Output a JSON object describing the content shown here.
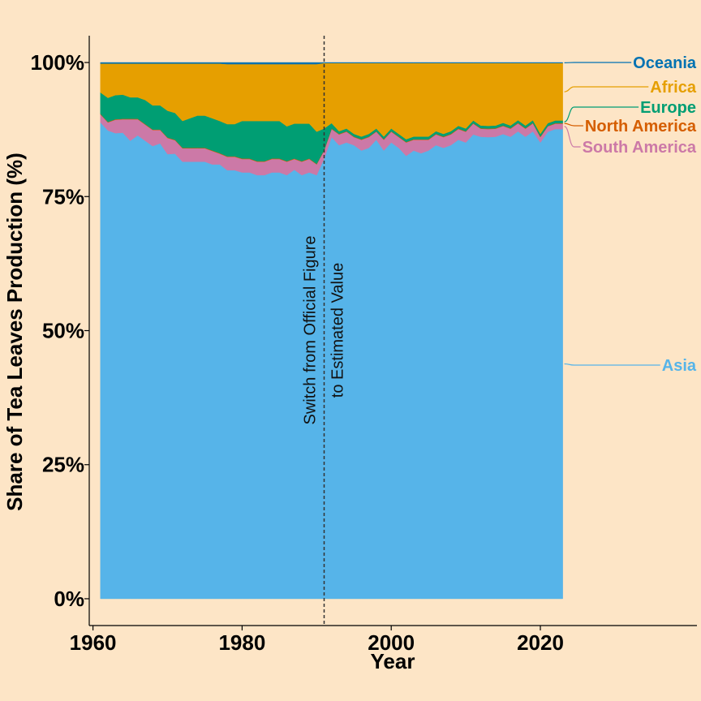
{
  "chart_data": {
    "type": "area",
    "stacked": true,
    "title": "",
    "xlabel": "Year",
    "ylabel": "Share of Tea Leaves Production (%)",
    "xlim": [
      1959.5,
      2041
    ],
    "ylim": [
      -5,
      105
    ],
    "x_ticks": [
      1960,
      1980,
      2000,
      2020
    ],
    "x_tick_labels": [
      "1960",
      "1980",
      "2000",
      "2020"
    ],
    "y_ticks": [
      0,
      25,
      50,
      75,
      100
    ],
    "y_tick_labels": [
      "0%",
      "25%",
      "50%",
      "75%",
      "100%"
    ],
    "grid": false,
    "legend": "direct labels at right",
    "x": [
      1961,
      1962,
      1963,
      1964,
      1965,
      1966,
      1967,
      1968,
      1969,
      1970,
      1971,
      1972,
      1973,
      1974,
      1975,
      1976,
      1977,
      1978,
      1979,
      1980,
      1981,
      1982,
      1983,
      1984,
      1985,
      1986,
      1987,
      1988,
      1989,
      1990,
      1991,
      1992,
      1993,
      1994,
      1995,
      1996,
      1997,
      1998,
      1999,
      2000,
      2001,
      2002,
      2003,
      2004,
      2005,
      2006,
      2007,
      2008,
      2009,
      2010,
      2011,
      2012,
      2013,
      2014,
      2015,
      2016,
      2017,
      2018,
      2019,
      2020,
      2021,
      2022,
      2023
    ],
    "series": [
      {
        "name": "Asia",
        "color": "#56B4E9",
        "values": [
          89.0,
          87.5,
          87.0,
          87.0,
          85.5,
          86.5,
          85.5,
          84.5,
          85.0,
          83.0,
          83.0,
          81.5,
          81.5,
          81.5,
          81.5,
          81.0,
          81.0,
          80.0,
          80.0,
          79.5,
          79.5,
          79.0,
          79.0,
          79.5,
          79.5,
          79.0,
          80.0,
          79.0,
          79.5,
          79.0,
          82.0,
          86.0,
          84.5,
          85.0,
          84.5,
          83.5,
          84.0,
          85.5,
          83.5,
          85.0,
          84.0,
          82.5,
          83.5,
          83.0,
          83.5,
          84.5,
          84.0,
          84.5,
          85.5,
          85.0,
          86.5,
          86.5,
          86.0,
          86.5,
          87.0,
          86.5,
          87.5,
          86.5,
          87.5,
          85.0,
          87.0,
          87.5,
          87.5
        ]
      },
      {
        "name": "South America",
        "color": "#CC79A7",
        "values": [
          1.5,
          1.5,
          2.5,
          2.5,
          4.0,
          3.0,
          3.0,
          3.0,
          2.5,
          3.0,
          2.5,
          2.5,
          2.5,
          2.5,
          2.5,
          2.5,
          2.0,
          2.5,
          2.5,
          2.5,
          2.5,
          2.5,
          2.5,
          2.5,
          2.5,
          2.5,
          2.0,
          2.5,
          2.5,
          2.0,
          1.5,
          1.5,
          2.0,
          2.0,
          1.5,
          2.0,
          2.0,
          1.5,
          2.0,
          2.0,
          2.0,
          2.5,
          2.0,
          2.5,
          2.0,
          2.0,
          2.0,
          2.0,
          2.0,
          2.0,
          2.0,
          1.5,
          1.5,
          1.5,
          1.5,
          1.5,
          1.5,
          1.5,
          1.5,
          1.0,
          1.0,
          1.0,
          1.0
        ]
      },
      {
        "name": "North America",
        "color": "#D55E00",
        "values": [
          0.1,
          0.1,
          0.1,
          0.1,
          0.1,
          0.1,
          0.1,
          0.1,
          0.1,
          0.1,
          0.1,
          0.1,
          0.1,
          0.1,
          0.1,
          0.1,
          0.1,
          0.1,
          0.1,
          0.1,
          0.1,
          0.1,
          0.1,
          0.1,
          0.1,
          0.1,
          0.1,
          0.1,
          0.1,
          0.1,
          0.1,
          0.1,
          0.1,
          0.1,
          0.1,
          0.1,
          0.1,
          0.1,
          0.1,
          0.1,
          0.1,
          0.1,
          0.1,
          0.1,
          0.1,
          0.1,
          0.1,
          0.1,
          0.1,
          0.1,
          0.1,
          0.1,
          0.1,
          0.1,
          0.1,
          0.1,
          0.1,
          0.1,
          0.1,
          0.1,
          0.1,
          0.1,
          0.1
        ]
      },
      {
        "name": "Europe",
        "color": "#009E73",
        "values": [
          4.0,
          4.5,
          4.5,
          4.5,
          4.0,
          4.0,
          4.5,
          4.5,
          4.5,
          5.0,
          5.0,
          5.0,
          5.5,
          6.0,
          6.0,
          6.0,
          6.0,
          6.0,
          6.0,
          7.0,
          7.0,
          7.5,
          7.5,
          7.0,
          7.0,
          6.5,
          6.5,
          7.0,
          6.5,
          6.0,
          4.0,
          1.0,
          0.5,
          0.5,
          0.5,
          0.5,
          0.5,
          0.5,
          0.5,
          0.5,
          0.5,
          0.5,
          0.5,
          0.5,
          0.5,
          0.5,
          0.5,
          0.5,
          0.5,
          0.5,
          0.5,
          0.5,
          0.5,
          0.5,
          0.5,
          0.5,
          0.5,
          0.5,
          0.5,
          0.5,
          0.5,
          0.5,
          0.5
        ]
      },
      {
        "name": "Africa",
        "color": "#E69F00",
        "values": [
          5.4,
          6.4,
          5.9,
          5.8,
          6.3,
          6.3,
          6.8,
          7.8,
          7.8,
          8.8,
          9.2,
          10.7,
          10.2,
          9.7,
          9.7,
          10.2,
          10.7,
          11.2,
          11.2,
          10.6,
          10.6,
          10.6,
          10.6,
          10.6,
          10.6,
          11.6,
          11.1,
          11.1,
          11.1,
          12.6,
          12.2,
          11.2,
          12.7,
          12.2,
          13.2,
          13.7,
          13.2,
          12.2,
          13.7,
          12.2,
          13.2,
          14.2,
          13.7,
          13.7,
          13.7,
          12.7,
          13.2,
          12.7,
          11.7,
          12.2,
          10.7,
          11.7,
          11.7,
          11.7,
          11.2,
          11.7,
          10.7,
          11.7,
          10.7,
          13.2,
          11.2,
          10.7,
          10.7
        ]
      },
      {
        "name": "Oceania",
        "color": "#0072B2",
        "values": [
          0.2,
          0.2,
          0.2,
          0.2,
          0.2,
          0.2,
          0.2,
          0.2,
          0.2,
          0.2,
          0.2,
          0.2,
          0.2,
          0.2,
          0.2,
          0.2,
          0.2,
          0.3,
          0.3,
          0.3,
          0.3,
          0.3,
          0.3,
          0.3,
          0.3,
          0.3,
          0.3,
          0.3,
          0.3,
          0.3,
          0.1,
          0.1,
          0.1,
          0.1,
          0.1,
          0.1,
          0.1,
          0.1,
          0.1,
          0.1,
          0.1,
          0.1,
          0.1,
          0.1,
          0.1,
          0.1,
          0.1,
          0.1,
          0.1,
          0.1,
          0.1,
          0.1,
          0.1,
          0.1,
          0.1,
          0.1,
          0.1,
          0.1,
          0.1,
          0.1,
          0.1,
          0.1,
          0.1
        ]
      }
    ],
    "annotation": {
      "x": 1991,
      "text_line1": "Switch from Official Figure",
      "text_line2": "to Estimated Value",
      "style": "dashed vertical line"
    }
  }
}
